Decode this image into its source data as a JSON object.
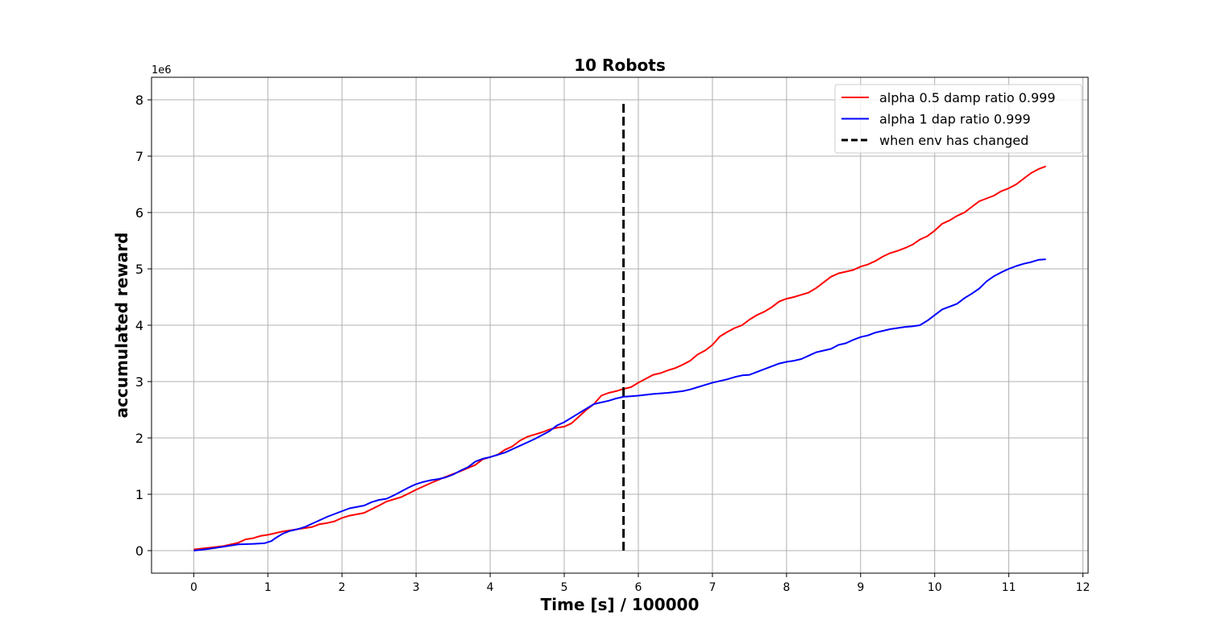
{
  "chart_data": {
    "type": "line",
    "title": "10 Robots",
    "xlabel": "Time [s] / 100000",
    "ylabel": "accumulated reward",
    "y_offset_label": "1e6",
    "xlim": [
      -0.57,
      12.07
    ],
    "ylim": [
      -0.4,
      8.4
    ],
    "xticks": [
      0,
      1,
      2,
      3,
      4,
      5,
      6,
      7,
      8,
      9,
      10,
      11,
      12
    ],
    "yticks": [
      0,
      1,
      2,
      3,
      4,
      5,
      6,
      7,
      8
    ],
    "grid": true,
    "legend_position": "top-right",
    "series": [
      {
        "name": " alpha 0.5 damp ratio 0.999",
        "color": "#ff0000",
        "style": "solid",
        "points": [
          [
            0,
            0.02
          ],
          [
            0.2,
            0.05
          ],
          [
            0.4,
            0.08
          ],
          [
            0.6,
            0.14
          ],
          [
            0.7,
            0.2
          ],
          [
            0.8,
            0.22
          ],
          [
            0.9,
            0.26
          ],
          [
            1.0,
            0.28
          ],
          [
            1.2,
            0.34
          ],
          [
            1.4,
            0.38
          ],
          [
            1.6,
            0.42
          ],
          [
            1.7,
            0.47
          ],
          [
            1.8,
            0.49
          ],
          [
            1.9,
            0.52
          ],
          [
            2.0,
            0.58
          ],
          [
            2.1,
            0.62
          ],
          [
            2.3,
            0.67
          ],
          [
            2.5,
            0.8
          ],
          [
            2.6,
            0.87
          ],
          [
            2.8,
            0.95
          ],
          [
            3.0,
            1.08
          ],
          [
            3.2,
            1.2
          ],
          [
            3.4,
            1.31
          ],
          [
            3.6,
            1.41
          ],
          [
            3.8,
            1.52
          ],
          [
            3.9,
            1.62
          ],
          [
            4.1,
            1.7
          ],
          [
            4.2,
            1.79
          ],
          [
            4.3,
            1.85
          ],
          [
            4.4,
            1.95
          ],
          [
            4.5,
            2.02
          ],
          [
            4.6,
            2.06
          ],
          [
            4.7,
            2.1
          ],
          [
            4.8,
            2.15
          ],
          [
            4.9,
            2.18
          ],
          [
            5.0,
            2.2
          ],
          [
            5.1,
            2.26
          ],
          [
            5.2,
            2.38
          ],
          [
            5.3,
            2.5
          ],
          [
            5.4,
            2.6
          ],
          [
            5.5,
            2.75
          ],
          [
            5.6,
            2.8
          ],
          [
            5.7,
            2.83
          ],
          [
            5.8,
            2.87
          ],
          [
            5.9,
            2.9
          ],
          [
            6.0,
            2.98
          ],
          [
            6.1,
            3.05
          ],
          [
            6.2,
            3.12
          ],
          [
            6.3,
            3.15
          ],
          [
            6.4,
            3.2
          ],
          [
            6.5,
            3.24
          ],
          [
            6.6,
            3.3
          ],
          [
            6.7,
            3.37
          ],
          [
            6.8,
            3.48
          ],
          [
            6.9,
            3.55
          ],
          [
            7.0,
            3.65
          ],
          [
            7.1,
            3.8
          ],
          [
            7.2,
            3.88
          ],
          [
            7.3,
            3.95
          ],
          [
            7.4,
            4.0
          ],
          [
            7.5,
            4.1
          ],
          [
            7.6,
            4.18
          ],
          [
            7.7,
            4.24
          ],
          [
            7.8,
            4.32
          ],
          [
            7.9,
            4.42
          ],
          [
            8.0,
            4.47
          ],
          [
            8.1,
            4.5
          ],
          [
            8.2,
            4.54
          ],
          [
            8.3,
            4.58
          ],
          [
            8.4,
            4.66
          ],
          [
            8.5,
            4.76
          ],
          [
            8.6,
            4.86
          ],
          [
            8.7,
            4.92
          ],
          [
            8.8,
            4.95
          ],
          [
            8.9,
            4.98
          ],
          [
            9.0,
            5.04
          ],
          [
            9.1,
            5.08
          ],
          [
            9.2,
            5.14
          ],
          [
            9.3,
            5.22
          ],
          [
            9.4,
            5.28
          ],
          [
            9.5,
            5.32
          ],
          [
            9.6,
            5.37
          ],
          [
            9.7,
            5.43
          ],
          [
            9.8,
            5.52
          ],
          [
            9.9,
            5.58
          ],
          [
            10.0,
            5.68
          ],
          [
            10.1,
            5.8
          ],
          [
            10.2,
            5.86
          ],
          [
            10.3,
            5.94
          ],
          [
            10.4,
            6.0
          ],
          [
            10.5,
            6.1
          ],
          [
            10.6,
            6.2
          ],
          [
            10.7,
            6.25
          ],
          [
            10.8,
            6.3
          ],
          [
            10.9,
            6.38
          ],
          [
            11.0,
            6.43
          ],
          [
            11.1,
            6.5
          ],
          [
            11.2,
            6.6
          ],
          [
            11.3,
            6.7
          ],
          [
            11.4,
            6.77
          ],
          [
            11.5,
            6.82
          ]
        ]
      },
      {
        "name": " alpha 1 dap ratio 0.999",
        "color": "#0000ff",
        "style": "solid",
        "points": [
          [
            0,
            0.0
          ],
          [
            0.2,
            0.03
          ],
          [
            0.4,
            0.07
          ],
          [
            0.6,
            0.11
          ],
          [
            0.8,
            0.12
          ],
          [
            0.95,
            0.13
          ],
          [
            1.05,
            0.17
          ],
          [
            1.1,
            0.22
          ],
          [
            1.2,
            0.3
          ],
          [
            1.3,
            0.35
          ],
          [
            1.4,
            0.38
          ],
          [
            1.5,
            0.42
          ],
          [
            1.6,
            0.48
          ],
          [
            1.8,
            0.6
          ],
          [
            1.9,
            0.65
          ],
          [
            2.0,
            0.7
          ],
          [
            2.1,
            0.75
          ],
          [
            2.3,
            0.8
          ],
          [
            2.4,
            0.86
          ],
          [
            2.5,
            0.9
          ],
          [
            2.6,
            0.92
          ],
          [
            2.7,
            0.98
          ],
          [
            2.8,
            1.05
          ],
          [
            2.9,
            1.12
          ],
          [
            3.0,
            1.18
          ],
          [
            3.1,
            1.22
          ],
          [
            3.2,
            1.25
          ],
          [
            3.3,
            1.27
          ],
          [
            3.4,
            1.3
          ],
          [
            3.5,
            1.35
          ],
          [
            3.6,
            1.42
          ],
          [
            3.7,
            1.48
          ],
          [
            3.8,
            1.58
          ],
          [
            3.9,
            1.63
          ],
          [
            4.0,
            1.66
          ],
          [
            4.1,
            1.7
          ],
          [
            4.2,
            1.74
          ],
          [
            4.3,
            1.8
          ],
          [
            4.4,
            1.86
          ],
          [
            4.5,
            1.92
          ],
          [
            4.6,
            1.98
          ],
          [
            4.7,
            2.05
          ],
          [
            4.8,
            2.12
          ],
          [
            4.9,
            2.22
          ],
          [
            5.0,
            2.28
          ],
          [
            5.1,
            2.36
          ],
          [
            5.2,
            2.44
          ],
          [
            5.3,
            2.52
          ],
          [
            5.4,
            2.6
          ],
          [
            5.5,
            2.63
          ],
          [
            5.6,
            2.66
          ],
          [
            5.7,
            2.7
          ],
          [
            5.8,
            2.73
          ],
          [
            5.9,
            2.74
          ],
          [
            6.0,
            2.75
          ],
          [
            6.2,
            2.78
          ],
          [
            6.4,
            2.8
          ],
          [
            6.6,
            2.83
          ],
          [
            6.7,
            2.86
          ],
          [
            6.8,
            2.9
          ],
          [
            6.9,
            2.94
          ],
          [
            7.0,
            2.98
          ],
          [
            7.2,
            3.04
          ],
          [
            7.3,
            3.08
          ],
          [
            7.4,
            3.11
          ],
          [
            7.5,
            3.12
          ],
          [
            7.6,
            3.17
          ],
          [
            7.7,
            3.22
          ],
          [
            7.8,
            3.27
          ],
          [
            7.9,
            3.32
          ],
          [
            8.0,
            3.35
          ],
          [
            8.1,
            3.37
          ],
          [
            8.2,
            3.4
          ],
          [
            8.3,
            3.46
          ],
          [
            8.4,
            3.52
          ],
          [
            8.5,
            3.55
          ],
          [
            8.6,
            3.58
          ],
          [
            8.7,
            3.65
          ],
          [
            8.8,
            3.68
          ],
          [
            8.9,
            3.74
          ],
          [
            9.0,
            3.79
          ],
          [
            9.1,
            3.82
          ],
          [
            9.2,
            3.87
          ],
          [
            9.3,
            3.9
          ],
          [
            9.4,
            3.93
          ],
          [
            9.5,
            3.95
          ],
          [
            9.6,
            3.97
          ],
          [
            9.7,
            3.98
          ],
          [
            9.8,
            4.0
          ],
          [
            9.9,
            4.08
          ],
          [
            10.0,
            4.18
          ],
          [
            10.1,
            4.28
          ],
          [
            10.2,
            4.33
          ],
          [
            10.3,
            4.38
          ],
          [
            10.4,
            4.48
          ],
          [
            10.5,
            4.56
          ],
          [
            10.6,
            4.65
          ],
          [
            10.7,
            4.78
          ],
          [
            10.8,
            4.87
          ],
          [
            10.9,
            4.94
          ],
          [
            11.0,
            5.0
          ],
          [
            11.1,
            5.05
          ],
          [
            11.2,
            5.09
          ],
          [
            11.3,
            5.12
          ],
          [
            11.4,
            5.16
          ],
          [
            11.5,
            5.17
          ]
        ]
      },
      {
        "name": "when env has changed",
        "color": "#000000",
        "style": "dashed",
        "points": [
          [
            5.8,
            0.0
          ],
          [
            5.8,
            8.0
          ]
        ]
      }
    ]
  }
}
